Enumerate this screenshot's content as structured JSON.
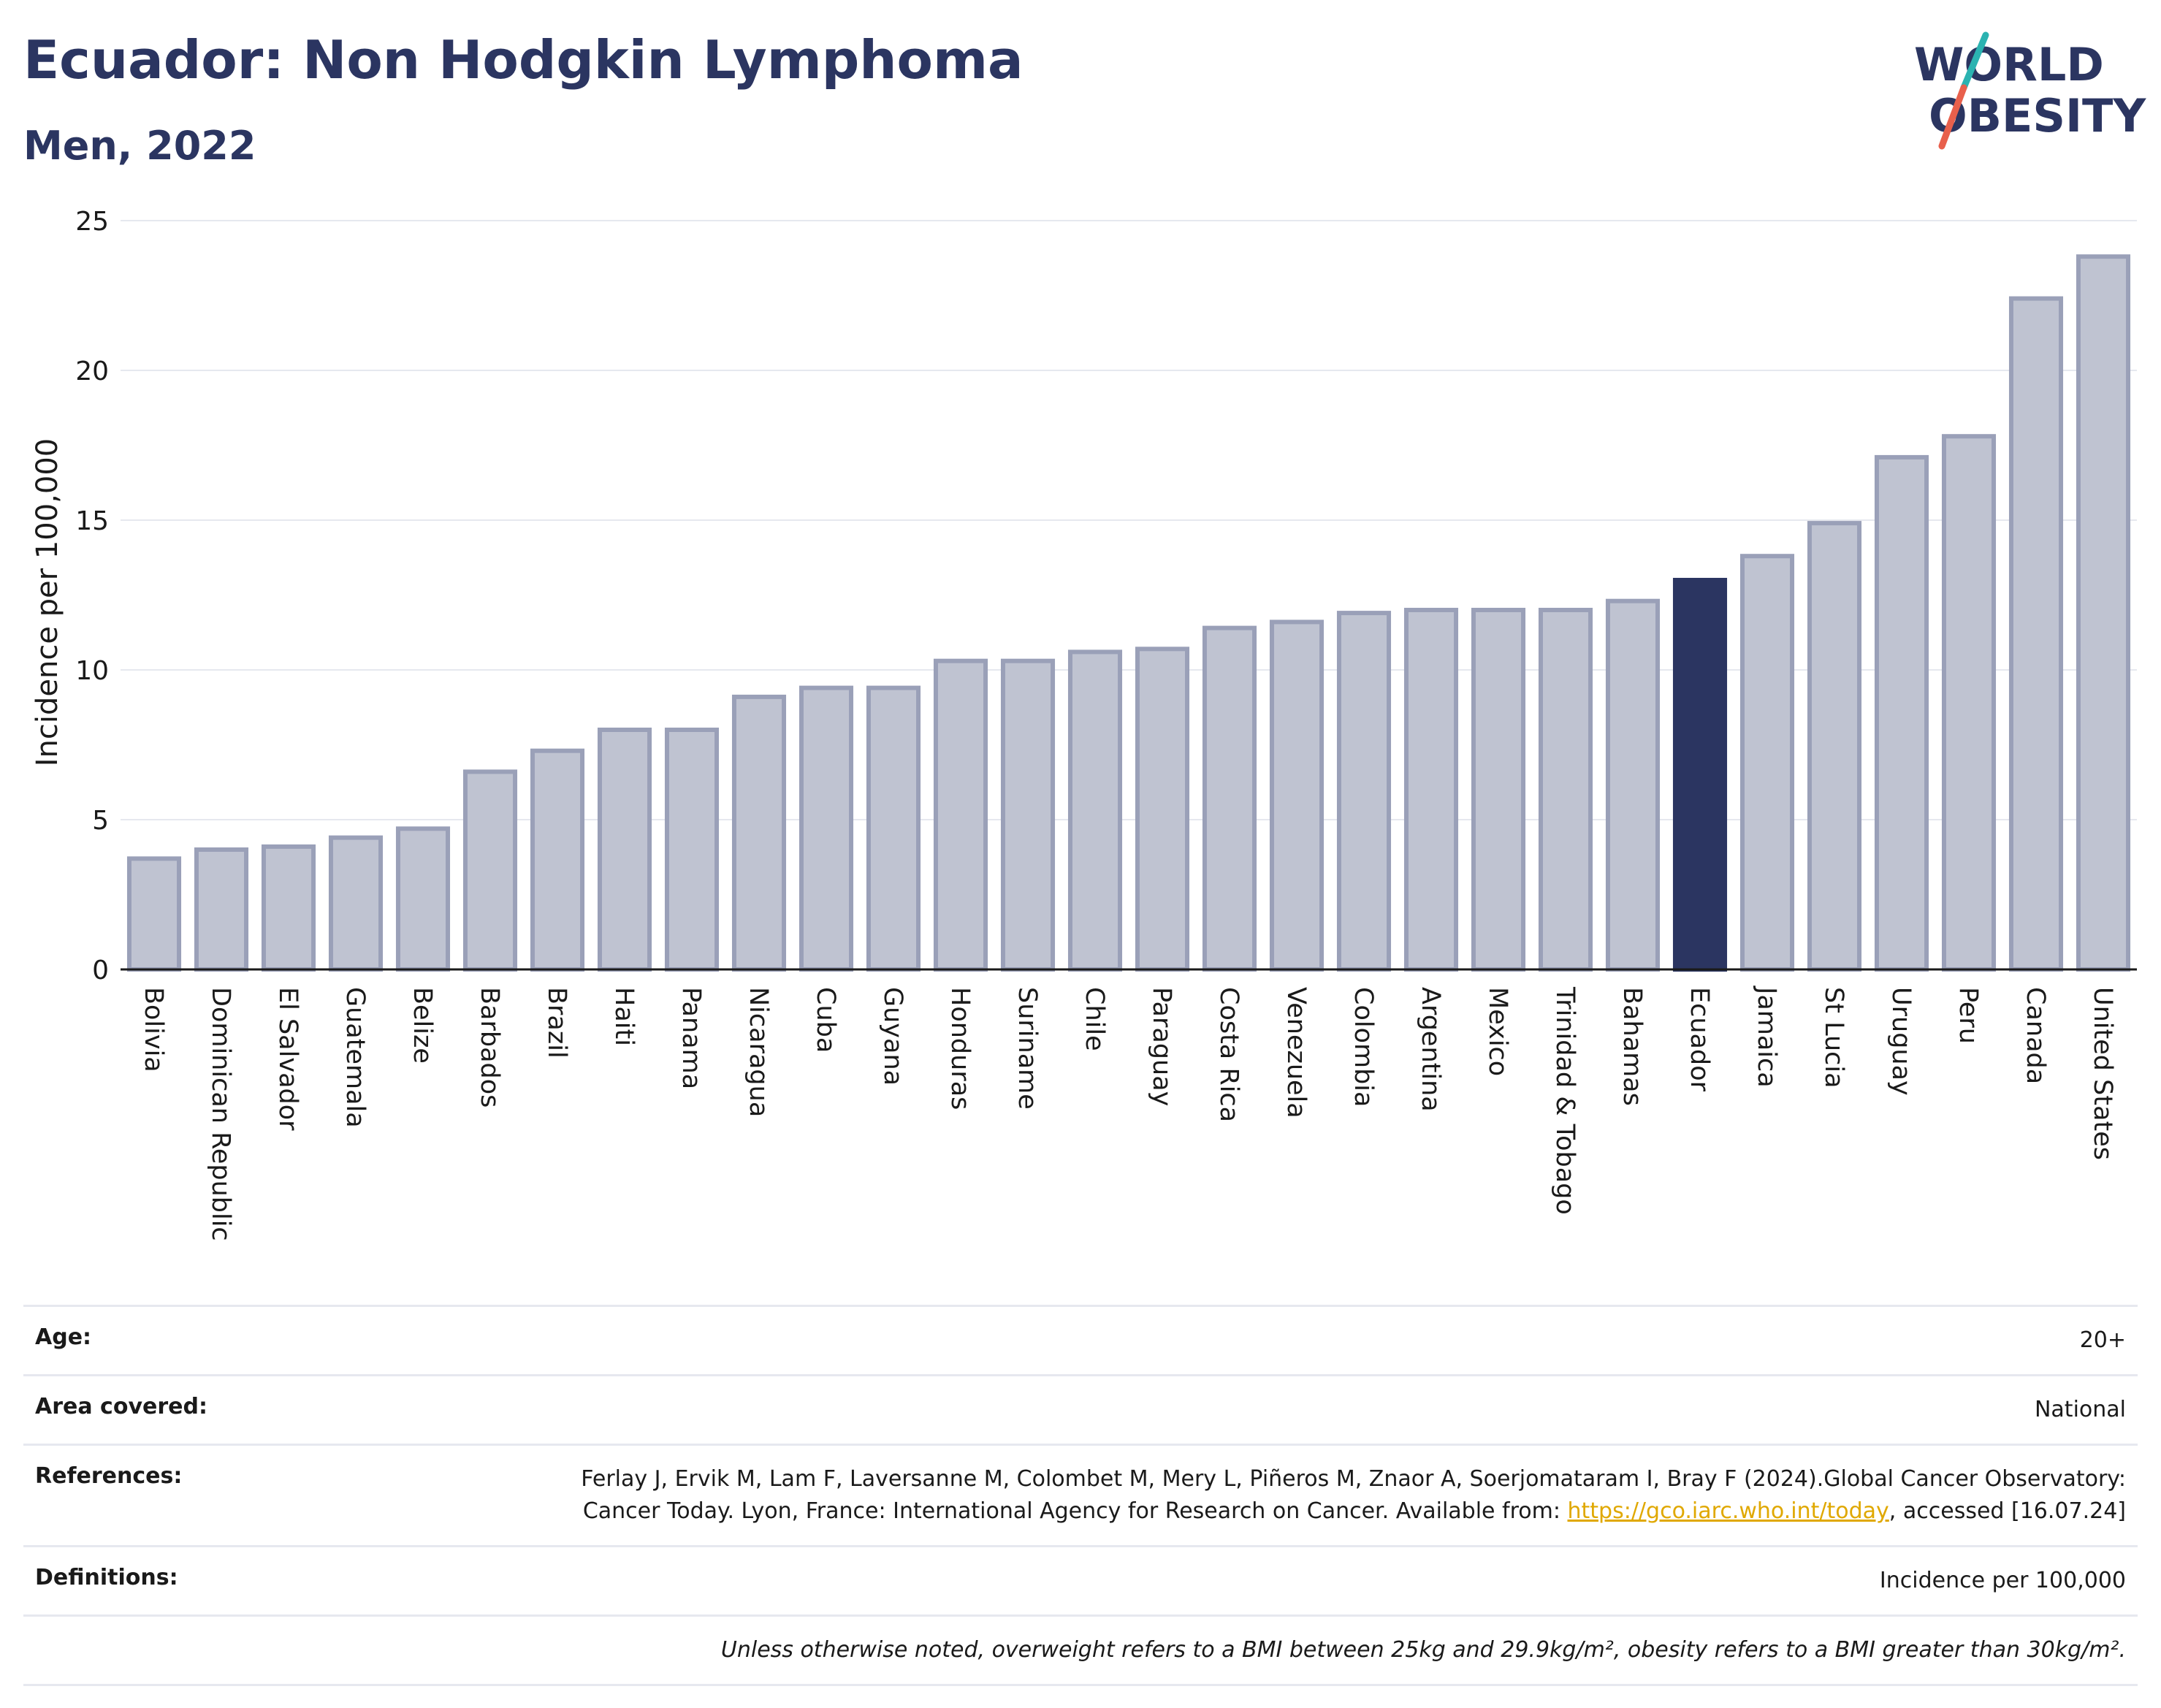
{
  "header": {
    "title": "Ecuador: Non Hodgkin Lymphoma",
    "subtitle": "Men, 2022"
  },
  "logo": {
    "line1": "WORLD",
    "line2": "OBESITY",
    "colors": {
      "text": "#2b3561",
      "slash_teal": "#2bb3b1",
      "slash_red": "#e8604c"
    }
  },
  "chart_data": {
    "type": "bar",
    "ylabel": "Incidence per 100,000",
    "ylim": [
      0,
      25
    ],
    "yticks": [
      0,
      5,
      10,
      15,
      20,
      25
    ],
    "grid": true,
    "highlight": "Ecuador",
    "colors": {
      "bar": "#bfc3d1",
      "bar_edge": "#9aa0b8",
      "highlight": "#2b3561"
    },
    "categories": [
      "Bolivia",
      "Dominican Republic",
      "El Salvador",
      "Guatemala",
      "Belize",
      "Barbados",
      "Brazil",
      "Haiti",
      "Panama",
      "Nicaragua",
      "Cuba",
      "Guyana",
      "Honduras",
      "Suriname",
      "Chile",
      "Paraguay",
      "Costa Rica",
      "Venezuela",
      "Colombia",
      "Argentina",
      "Mexico",
      "Trinidad & Tobago",
      "Bahamas",
      "Ecuador",
      "Jamaica",
      "St Lucia",
      "Uruguay",
      "Peru",
      "Canada",
      "United States"
    ],
    "values": [
      3.7,
      4.0,
      4.1,
      4.4,
      4.7,
      6.6,
      7.3,
      8.0,
      8.0,
      9.1,
      9.4,
      9.4,
      10.3,
      10.3,
      10.6,
      10.7,
      11.4,
      11.6,
      11.9,
      12.0,
      12.0,
      12.0,
      12.3,
      13.0,
      13.8,
      14.9,
      17.1,
      17.8,
      22.4,
      23.8
    ]
  },
  "meta": {
    "age": {
      "label": "Age:",
      "value": "20+"
    },
    "area": {
      "label": "Area covered:",
      "value": "National"
    },
    "references": {
      "label": "References:",
      "text_before": "Ferlay J, Ervik M, Lam F, Laversanne M, Colombet M, Mery L, Piñeros M, Znaor A, Soerjomataram I, Bray F (2024).Global Cancer Observatory: Cancer Today. Lyon, France: International Agency for Research on Cancer. Available from: ",
      "link": "https://gco.iarc.who.int/today",
      "text_after": ", accessed [16.07.24]"
    },
    "definitions": {
      "label": "Definitions:",
      "value": "Incidence per 100,000"
    },
    "note": "Unless otherwise noted, overweight refers to a BMI between 25kg and 29.9kg/m², obesity refers to a BMI greater than 30kg/m²."
  }
}
